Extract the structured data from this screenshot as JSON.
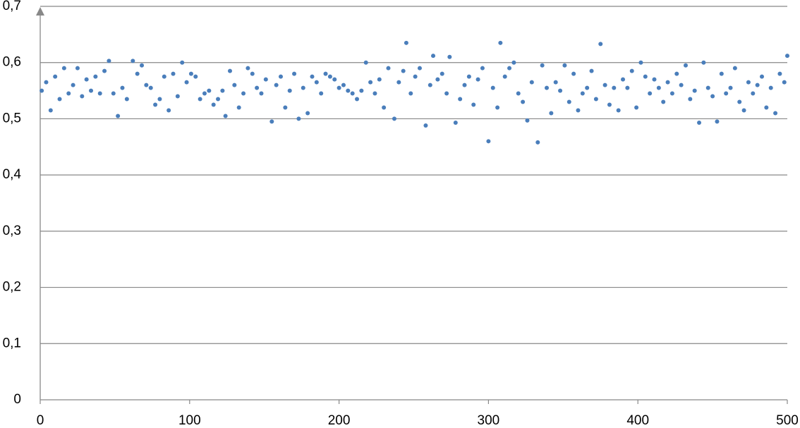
{
  "chart_data": {
    "type": "scatter",
    "color": "#4a7ebb",
    "grid": true,
    "xlim": [
      0,
      500
    ],
    "xticks": [
      0,
      100,
      200,
      300,
      400,
      500
    ],
    "ylim": [
      0,
      0.7
    ],
    "yticks": [
      0,
      {
        "value": 0.1,
        "label": "0,1"
      },
      {
        "value": 0.2,
        "label": "0,2"
      },
      {
        "value": 0.3,
        "label": "0,3"
      },
      {
        "value": 0.4,
        "label": "0,4"
      },
      {
        "value": 0.5,
        "label": "0,5"
      },
      {
        "value": 0.6,
        "label": "0,6"
      },
      {
        "value": 0.7,
        "label": "0,7"
      }
    ],
    "x": [
      1,
      4,
      7,
      10,
      13,
      16,
      19,
      22,
      25,
      28,
      31,
      34,
      37,
      40,
      43,
      46,
      49,
      52,
      55,
      58,
      62,
      65,
      68,
      71,
      74,
      77,
      80,
      83,
      86,
      89,
      92,
      95,
      98,
      101,
      104,
      107,
      110,
      113,
      116,
      119,
      122,
      124,
      127,
      130,
      133,
      136,
      139,
      142,
      145,
      148,
      151,
      155,
      158,
      161,
      164,
      167,
      170,
      173,
      176,
      179,
      182,
      185,
      188,
      191,
      194,
      197,
      200,
      203,
      206,
      209,
      212,
      215,
      218,
      221,
      224,
      227,
      230,
      233,
      237,
      240,
      243,
      245,
      248,
      251,
      254,
      258,
      261,
      263,
      266,
      269,
      272,
      274,
      278,
      281,
      284,
      287,
      290,
      293,
      296,
      300,
      303,
      306,
      308,
      311,
      314,
      317,
      320,
      323,
      326,
      329,
      333,
      336,
      339,
      342,
      345,
      348,
      351,
      354,
      357,
      360,
      363,
      366,
      369,
      372,
      375,
      378,
      381,
      384,
      387,
      390,
      393,
      396,
      399,
      402,
      405,
      408,
      411,
      414,
      417,
      420,
      423,
      426,
      429,
      432,
      435,
      438,
      441,
      444,
      447,
      450,
      453,
      456,
      459,
      462,
      465,
      468,
      471,
      474,
      477,
      480,
      483,
      486,
      489,
      492,
      495,
      498,
      500
    ],
    "values": [
      0.55,
      0.565,
      0.515,
      0.575,
      0.535,
      0.59,
      0.545,
      0.56,
      0.59,
      0.54,
      0.57,
      0.55,
      0.575,
      0.545,
      0.585,
      0.603,
      0.545,
      0.505,
      0.555,
      0.535,
      0.603,
      0.58,
      0.595,
      0.56,
      0.555,
      0.525,
      0.535,
      0.575,
      0.515,
      0.58,
      0.54,
      0.6,
      0.565,
      0.58,
      0.575,
      0.535,
      0.545,
      0.55,
      0.525,
      0.535,
      0.55,
      0.505,
      0.585,
      0.56,
      0.52,
      0.545,
      0.59,
      0.58,
      0.555,
      0.545,
      0.57,
      0.495,
      0.56,
      0.575,
      0.52,
      0.55,
      0.58,
      0.5,
      0.555,
      0.51,
      0.575,
      0.565,
      0.545,
      0.58,
      0.575,
      0.57,
      0.555,
      0.56,
      0.55,
      0.545,
      0.535,
      0.55,
      0.6,
      0.565,
      0.545,
      0.57,
      0.52,
      0.59,
      0.5,
      0.565,
      0.585,
      0.635,
      0.545,
      0.575,
      0.59,
      0.488,
      0.56,
      0.612,
      0.57,
      0.58,
      0.545,
      0.61,
      0.493,
      0.535,
      0.56,
      0.575,
      0.525,
      0.57,
      0.59,
      0.46,
      0.555,
      0.52,
      0.635,
      0.575,
      0.59,
      0.6,
      0.545,
      0.53,
      0.497,
      0.565,
      0.458,
      0.595,
      0.555,
      0.51,
      0.565,
      0.55,
      0.595,
      0.53,
      0.58,
      0.515,
      0.545,
      0.555,
      0.585,
      0.535,
      0.633,
      0.56,
      0.525,
      0.555,
      0.515,
      0.57,
      0.555,
      0.585,
      0.52,
      0.6,
      0.575,
      0.545,
      0.57,
      0.555,
      0.53,
      0.565,
      0.545,
      0.58,
      0.56,
      0.595,
      0.535,
      0.55,
      0.493,
      0.6,
      0.555,
      0.54,
      0.495,
      0.58,
      0.545,
      0.555,
      0.59,
      0.53,
      0.515,
      0.565,
      0.545,
      0.56,
      0.575,
      0.52,
      0.555,
      0.51,
      0.58,
      0.565,
      0.612
    ]
  }
}
